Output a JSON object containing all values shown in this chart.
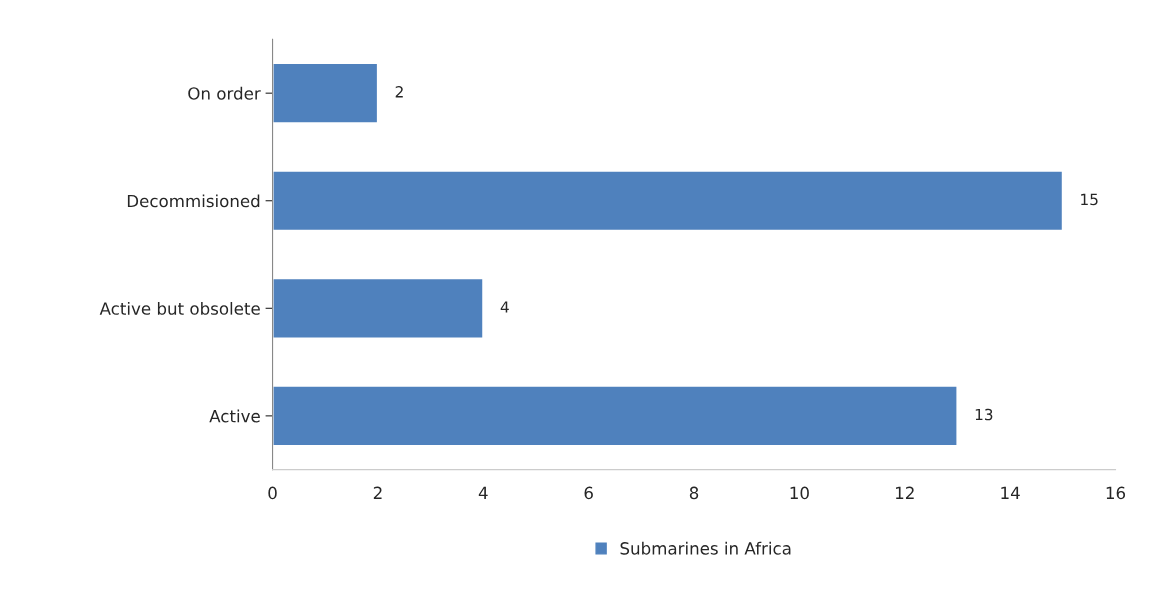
{
  "chart_data": {
    "type": "bar",
    "orientation": "horizontal",
    "categories": [
      "On order",
      "Decommisioned",
      "Active but obsolete",
      "Active"
    ],
    "series": [
      {
        "name": "Submarines in Africa",
        "color": "#4f81bd",
        "values": [
          2,
          15,
          4,
          13
        ]
      }
    ],
    "xlim": [
      0,
      16
    ],
    "xticks": [
      0,
      2,
      4,
      6,
      8,
      10,
      12,
      14,
      16
    ],
    "data_labels": true,
    "grid": false,
    "legend": "bottom"
  }
}
